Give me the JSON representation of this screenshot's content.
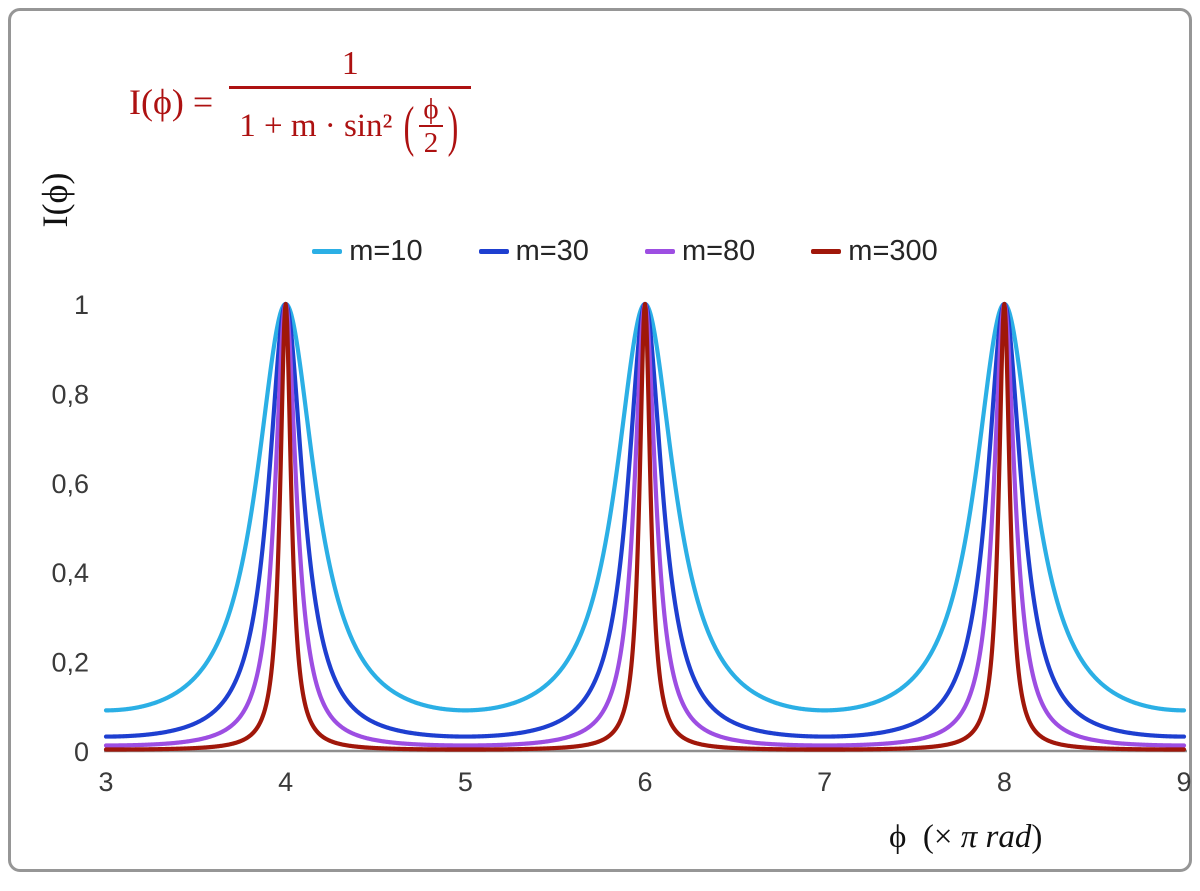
{
  "frame": {
    "border_color": "#969696",
    "background": "#ffffff"
  },
  "formula": {
    "lhs": "I(ϕ) =",
    "numerator": "1",
    "den_prefix": "1 + m · sin² ",
    "lparen": "(",
    "inner_num": "ϕ",
    "inner_den": "2",
    "rparen": ")",
    "color": "#ad1111",
    "full_text": "I(ϕ) = 1 / (1 + m·sin²(ϕ/2))"
  },
  "axis": {
    "line_color": "#8f8f8f",
    "tick_label_color": "#3a3a3a"
  },
  "chart_data": {
    "type": "line",
    "title": "",
    "xlabel": "ϕ (× π rad)",
    "xlabel_parts": {
      "prefix": "ϕ  (× ",
      "italic": "π rad",
      "suffix": ")"
    },
    "ylabel": "I(ϕ)",
    "x_range": [
      3,
      9
    ],
    "y_range": [
      0,
      1
    ],
    "x_ticks": [
      {
        "v": 3,
        "label": "3"
      },
      {
        "v": 4,
        "label": "4"
      },
      {
        "v": 5,
        "label": "5"
      },
      {
        "v": 6,
        "label": "6"
      },
      {
        "v": 7,
        "label": "7"
      },
      {
        "v": 8,
        "label": "8"
      },
      {
        "v": 9,
        "label": "9"
      }
    ],
    "y_ticks": [
      {
        "v": 0,
        "label": "0"
      },
      {
        "v": 0.2,
        "label": "0,2"
      },
      {
        "v": 0.4,
        "label": "0,4"
      },
      {
        "v": 0.6,
        "label": "0,6"
      },
      {
        "v": 0.8,
        "label": "0,8"
      },
      {
        "v": 1,
        "label": "1"
      }
    ],
    "grid": false,
    "legend_position": "top-center",
    "function": "I(x) = 1 / (1 + m · sin²(x·π/2)), x expressed in units of π rad; peaks of I = 1 at x = 4, 6, 8; minima I = 1/(1+m) at odd x",
    "sampling": {
      "x_start": 3,
      "x_end": 9,
      "step": 0.004
    },
    "series": [
      {
        "name": "m=10",
        "m": 10,
        "color": "#2bafe5",
        "minimum": 0.0909
      },
      {
        "name": "m=30",
        "m": 30,
        "color": "#1e3fd0",
        "minimum": 0.0323
      },
      {
        "name": "m=80",
        "m": 80,
        "color": "#9d4ee2",
        "minimum": 0.0123
      },
      {
        "name": "m=300",
        "m": 300,
        "color": "#a0170a",
        "minimum": 0.0033
      }
    ]
  }
}
